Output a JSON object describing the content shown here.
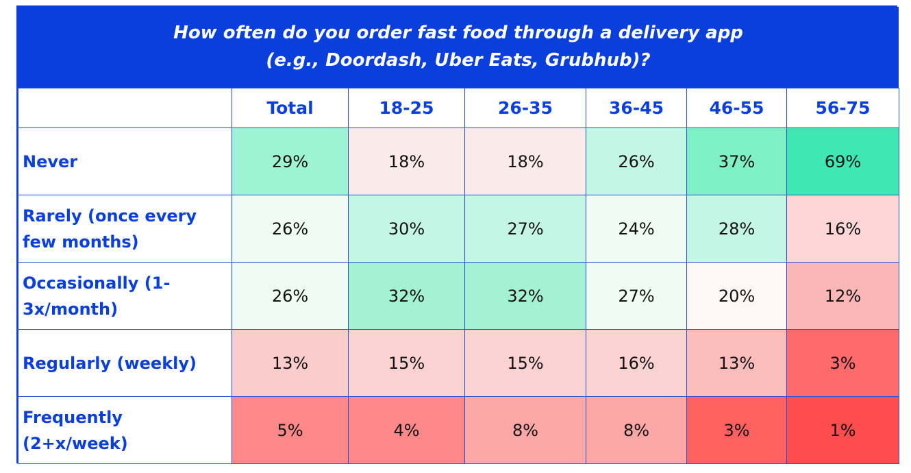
{
  "chart_data": {
    "type": "heatmap",
    "title_lines": [
      "How often do you order fast food through a delivery app",
      "(e.g., Doordash, Uber Eats, Grubhub)?"
    ],
    "columns": [
      "Total",
      "18-25",
      "26-35",
      "36-45",
      "46-55",
      "56-75"
    ],
    "rows": [
      {
        "label": "Never",
        "values": [
          29,
          18,
          18,
          26,
          37,
          69
        ],
        "labels": [
          "29%",
          "18%",
          "18%",
          "26%",
          "37%",
          "69%"
        ]
      },
      {
        "label": "Rarely (once every few months)",
        "values": [
          26,
          30,
          27,
          24,
          28,
          16
        ],
        "labels": [
          "26%",
          "30%",
          "27%",
          "24%",
          "28%",
          "16%"
        ]
      },
      {
        "label": "Occasionally (1-3x/month)",
        "values": [
          26,
          32,
          32,
          27,
          20,
          12
        ],
        "labels": [
          "26%",
          "32%",
          "32%",
          "27%",
          "20%",
          "12%"
        ]
      },
      {
        "label": "Regularly (weekly)",
        "values": [
          13,
          15,
          15,
          16,
          13,
          3
        ],
        "labels": [
          "13%",
          "15%",
          "15%",
          "16%",
          "13%",
          "3%"
        ]
      },
      {
        "label": "Frequently (2+x/week)",
        "values": [
          5,
          4,
          8,
          8,
          3,
          1
        ],
        "labels": [
          "5%",
          "4%",
          "8%",
          "8%",
          "3%",
          "1%"
        ]
      }
    ],
    "cell_colors": [
      [
        "#9ef3d5",
        "#fbeaea",
        "#fbeaea",
        "#c3f6e4",
        "#7fefc6",
        "#3fe8b1"
      ],
      [
        "#f0fbf6",
        "#c3f6e4",
        "#c3f6e4",
        "#f0fbf6",
        "#c3f6e4",
        "#fcd6d6"
      ],
      [
        "#f0fbf6",
        "#a4f1d6",
        "#a4f1d6",
        "#f0fbf6",
        "#fff6f6",
        "#fbb6b6"
      ],
      [
        "#fbcccc",
        "#fbd2d2",
        "#fbd2d2",
        "#fbd2d2",
        "#fbbcbc",
        "#ff6a6a"
      ],
      [
        "#ff8888",
        "#ff8888",
        "#fea7a7",
        "#fea7a7",
        "#ff6060",
        "#ff4c4c"
      ]
    ],
    "colors": {
      "brand_blue": "#0a3fdc",
      "header_text": "#ffffff",
      "cell_text": "#111111"
    }
  }
}
